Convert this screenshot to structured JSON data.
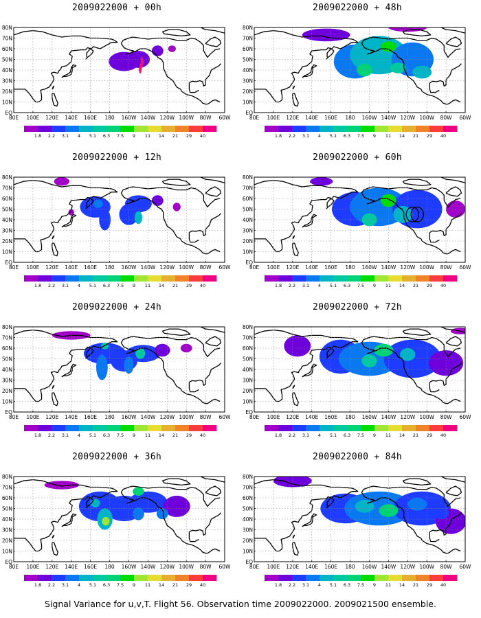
{
  "colors": {
    "scale": [
      "#a000c8",
      "#6e00dc",
      "#1e3cff",
      "#0a78f0",
      "#00b4c8",
      "#00c8a0",
      "#00d278",
      "#00dc00",
      "#a0e632",
      "#e6dc32",
      "#e6af2d",
      "#f08228",
      "#fa3c3c",
      "#f00082"
    ],
    "continent": "#000000",
    "grid": "#8c8c8c",
    "track": "#ff1464"
  },
  "legend": {
    "labels": [
      "1.8",
      "2.2",
      "3.1",
      "4",
      "5.1",
      "6.3",
      "7.5",
      "9",
      "11",
      "14",
      "21",
      "29",
      "40"
    ]
  },
  "axes": {
    "lon_labels": [
      "80E",
      "100E",
      "120E",
      "140E",
      "160E",
      "180",
      "160W",
      "140W",
      "120W",
      "100W",
      "80W",
      "60W"
    ],
    "lat_labels": [
      "80N",
      "70N",
      "60N",
      "50N",
      "40N",
      "30N",
      "20N",
      "10N",
      "EQ"
    ]
  },
  "panels": [
    {
      "id": "p00",
      "title": "2009022000 + 00h",
      "blobs": [
        [
          -165,
          48,
          16,
          9,
          1
        ],
        [
          -150,
          50,
          12,
          8,
          1
        ],
        [
          -130,
          58,
          6,
          5,
          1
        ],
        [
          -115,
          60,
          4,
          3,
          0
        ]
      ],
      "track": [
        [
          -147,
          52
        ],
        [
          -145,
          47
        ],
        [
          -147,
          42
        ],
        [
          -148,
          37
        ],
        [
          -149,
          40
        ],
        [
          -147,
          47
        ],
        [
          -146,
          52
        ]
      ],
      "circles": []
    },
    {
      "id": "p48",
      "title": "2009022000 + 48h",
      "blobs": [
        [
          -175,
          48,
          22,
          16,
          3
        ],
        [
          -150,
          54,
          30,
          18,
          4
        ],
        [
          -115,
          50,
          22,
          16,
          3
        ],
        [
          155,
          73,
          25,
          6,
          1
        ],
        [
          -120,
          80,
          20,
          4,
          0
        ],
        [
          -165,
          40,
          8,
          6,
          6
        ],
        [
          -140,
          62,
          8,
          5,
          7
        ],
        [
          -130,
          42,
          8,
          5,
          5
        ],
        [
          -105,
          38,
          10,
          6,
          4
        ]
      ],
      "track": [],
      "circles": []
    },
    {
      "id": "p12",
      "title": "2009022000 + 12h",
      "blobs": [
        [
          165,
          52,
          16,
          10,
          2
        ],
        [
          175,
          40,
          6,
          10,
          2
        ],
        [
          -160,
          45,
          10,
          10,
          2
        ],
        [
          -150,
          55,
          14,
          8,
          2
        ],
        [
          -130,
          58,
          6,
          5,
          1
        ],
        [
          -110,
          52,
          4,
          4,
          0
        ],
        [
          130,
          76,
          8,
          4,
          0
        ],
        [
          140,
          47,
          3,
          3,
          0
        ],
        [
          -150,
          42,
          4,
          6,
          4
        ],
        [
          168,
          55,
          5,
          4,
          3
        ]
      ],
      "track": [],
      "circles": []
    },
    {
      "id": "p60",
      "title": "2009022000 + 60h",
      "blobs": [
        [
          -175,
          50,
          24,
          16,
          2
        ],
        [
          -150,
          52,
          30,
          18,
          3
        ],
        [
          -110,
          50,
          26,
          18,
          2
        ],
        [
          150,
          76,
          12,
          4,
          1
        ],
        [
          -70,
          50,
          10,
          8,
          0
        ],
        [
          -140,
          58,
          8,
          6,
          7
        ],
        [
          -160,
          40,
          8,
          6,
          5
        ],
        [
          -125,
          45,
          10,
          8,
          4
        ]
      ],
      "track": [],
      "circles": [
        [
          -115,
          45,
          6.5,
          7
        ],
        [
          -110,
          45,
          6.5,
          7
        ]
      ]
    },
    {
      "id": "p24",
      "title": "2009022000 + 24h",
      "blobs": [
        [
          175,
          55,
          22,
          10,
          2
        ],
        [
          -165,
          48,
          14,
          10,
          2
        ],
        [
          -145,
          55,
          18,
          8,
          2
        ],
        [
          -125,
          58,
          8,
          6,
          1
        ],
        [
          172,
          42,
          6,
          12,
          3
        ],
        [
          -160,
          44,
          5,
          8,
          3
        ],
        [
          140,
          72,
          20,
          4,
          0
        ],
        [
          -100,
          60,
          6,
          4,
          0
        ],
        [
          175,
          62,
          4,
          3,
          5
        ],
        [
          -148,
          55,
          5,
          5,
          5
        ]
      ],
      "track": [],
      "circles": []
    },
    {
      "id": "p72",
      "title": "2009022000 + 72h",
      "blobs": [
        [
          170,
          52,
          22,
          16,
          2
        ],
        [
          -160,
          50,
          32,
          16,
          3
        ],
        [
          -115,
          50,
          30,
          18,
          2
        ],
        [
          125,
          62,
          14,
          10,
          1
        ],
        [
          -80,
          46,
          18,
          12,
          1
        ],
        [
          -145,
          58,
          10,
          6,
          6
        ],
        [
          -160,
          48,
          8,
          6,
          5
        ],
        [
          -120,
          54,
          8,
          6,
          4
        ],
        [
          -65,
          76,
          10,
          3,
          0
        ]
      ],
      "track": [],
      "circles": []
    },
    {
      "id": "p36",
      "title": "2009022000 + 36h",
      "blobs": [
        [
          170,
          52,
          22,
          14,
          2
        ],
        [
          -165,
          50,
          20,
          12,
          2
        ],
        [
          -140,
          56,
          20,
          10,
          2
        ],
        [
          -110,
          52,
          14,
          10,
          1
        ],
        [
          175,
          40,
          8,
          10,
          4
        ],
        [
          130,
          72,
          18,
          4,
          0
        ],
        [
          -150,
          45,
          6,
          6,
          3
        ],
        [
          176,
          38,
          4,
          4,
          8
        ],
        [
          -150,
          66,
          6,
          4,
          6
        ],
        [
          165,
          55,
          5,
          4,
          4
        ],
        [
          -125,
          45,
          6,
          5,
          3
        ]
      ],
      "track": [],
      "circles": []
    },
    {
      "id": "p84",
      "title": "2009022000 + 84h",
      "blobs": [
        [
          175,
          50,
          26,
          14,
          2
        ],
        [
          -150,
          50,
          36,
          16,
          3
        ],
        [
          -105,
          50,
          30,
          16,
          2
        ],
        [
          120,
          76,
          20,
          6,
          1
        ],
        [
          -75,
          38,
          16,
          12,
          1
        ],
        [
          -140,
          48,
          10,
          6,
          6
        ],
        [
          -165,
          52,
          10,
          6,
          4
        ],
        [
          -110,
          54,
          10,
          6,
          3
        ],
        [
          -85,
          46,
          8,
          6,
          2
        ]
      ],
      "track": [],
      "circles": []
    }
  ],
  "caption": "Signal Variance for u,v,T. Flight 56. Observation time 2009022000. 2009021500 ensemble."
}
